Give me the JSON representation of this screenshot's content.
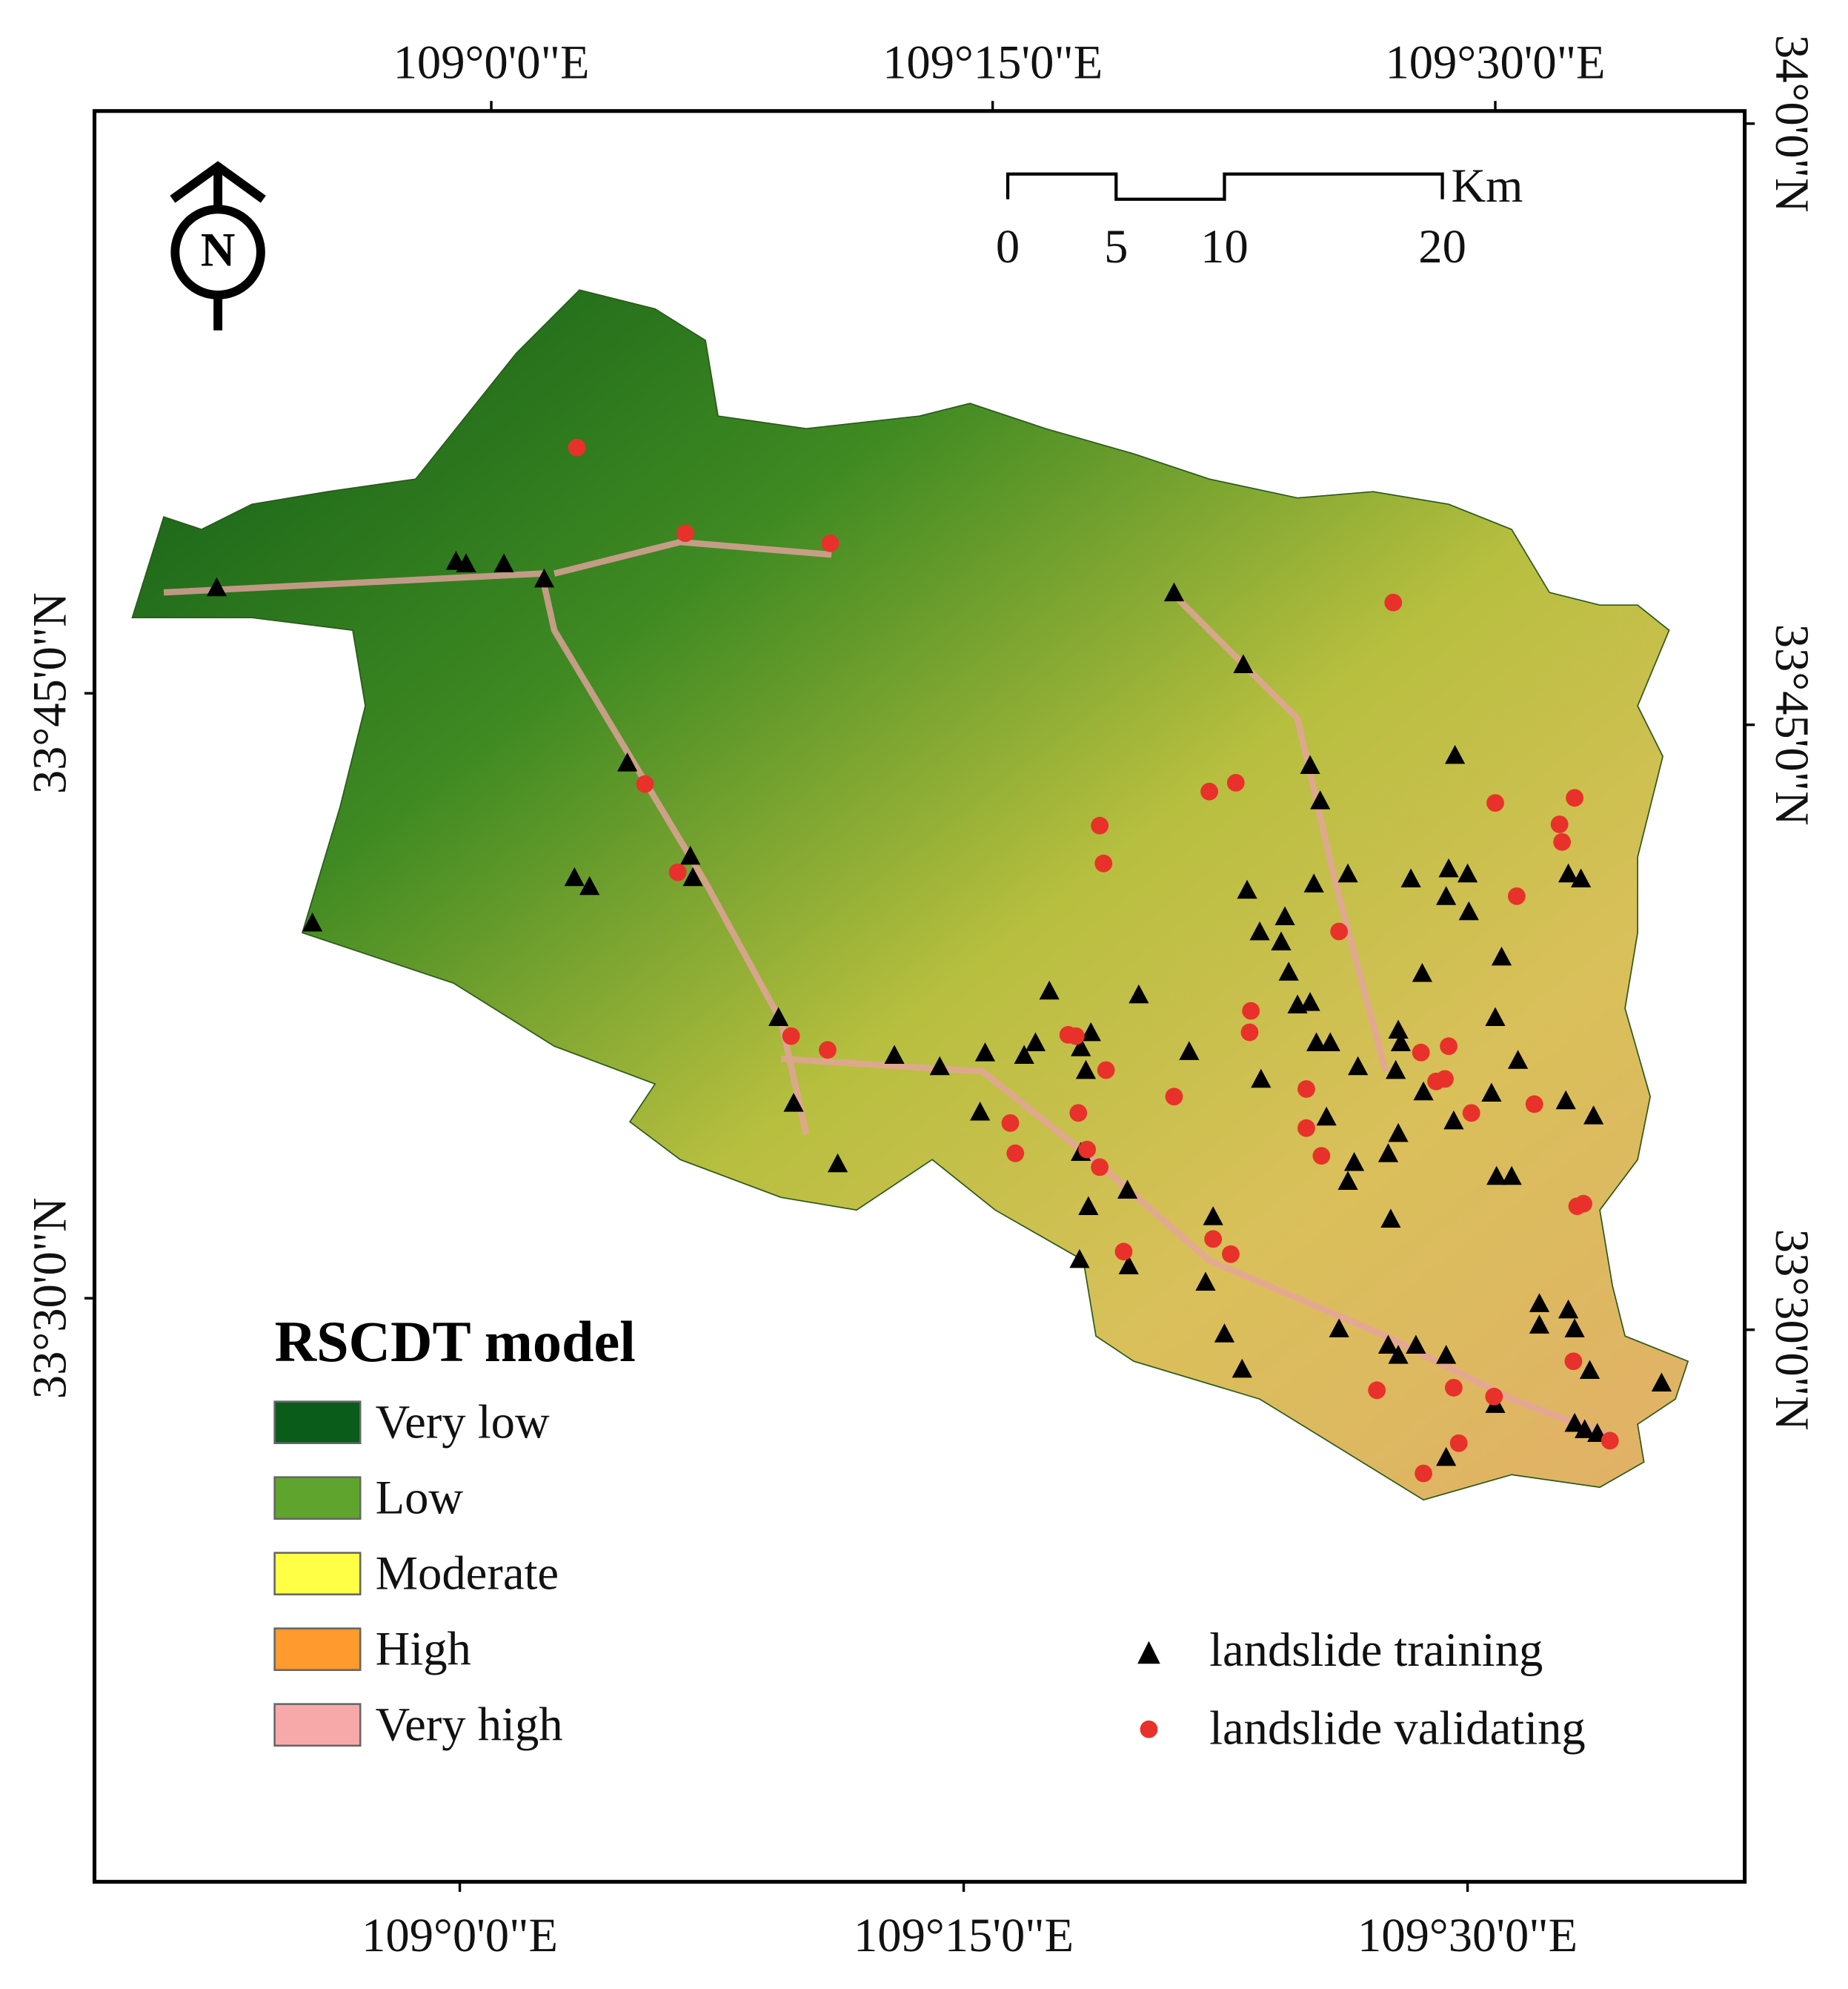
{
  "map": {
    "top_labels": [
      "109°0'0\"E",
      "109°15'0\"E",
      "109°30'0\"E"
    ],
    "bottom_labels": [
      "109°0'0\"E",
      "109°15'0\"E",
      "109°30'0\"E"
    ],
    "left_labels": [
      "33°45'0\"N",
      "33°30'0\"N"
    ],
    "right_labels": [
      "34°0'0\"N",
      "33°45'0\"N",
      "33°30'0\"N"
    ],
    "north": "N",
    "scale": {
      "unit": "Km",
      "labels": [
        "0",
        "5",
        "10",
        "20"
      ]
    },
    "legend": {
      "title": "RSCDT model",
      "classes": [
        "Very low",
        "Low",
        "Moderate",
        "High",
        "Very high"
      ]
    },
    "points_legend": [
      "landslide training",
      "landslide validating"
    ]
  }
}
